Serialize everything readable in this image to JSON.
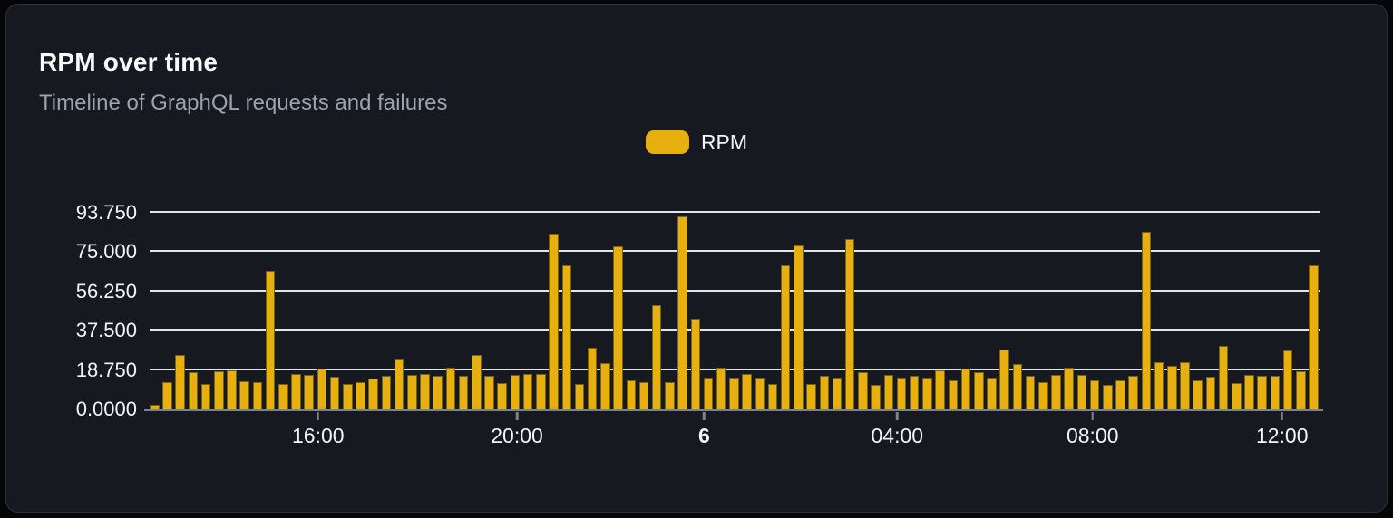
{
  "card": {
    "title": "RPM over time",
    "subtitle": "Timeline of GraphQL requests and failures"
  },
  "legend": {
    "items": [
      {
        "label": "RPM",
        "color": "#e8b00e"
      }
    ]
  },
  "colors": {
    "page_bg": "#060608",
    "card_bg": "#171920",
    "card_border": "#2e3138",
    "title_text": "#f9fafb",
    "subtitle_text": "#9aa3ae",
    "tick_text": "#f2f4f6",
    "grid_line": "#e2e6ea",
    "axis_line": "#7b838e",
    "bar_fill": "#e8b00e",
    "bar_stroke": "#76601a"
  },
  "chart_data": {
    "type": "bar",
    "title": "RPM over time",
    "subtitle": "Timeline of GraphQL requests and failures",
    "xlabel": "",
    "ylabel": "",
    "grid": "horizontal",
    "legend_position": "top-center",
    "ylim": [
      0,
      98.7
    ],
    "y_ticks": [
      {
        "label": "93.750",
        "value": 93.75
      },
      {
        "label": "75.000",
        "value": 75
      },
      {
        "label": "56.250",
        "value": 56.25
      },
      {
        "label": "37.500",
        "value": 37.5
      },
      {
        "label": "18.750",
        "value": 18.75
      },
      {
        "label": "0.0000",
        "value": 0
      }
    ],
    "x_ticks": [
      {
        "label": "16:00",
        "pos": 0.144,
        "bold": false
      },
      {
        "label": "20:00",
        "pos": 0.314,
        "bold": false
      },
      {
        "label": "6",
        "pos": 0.474,
        "bold": true
      },
      {
        "label": "04:00",
        "pos": 0.639,
        "bold": false
      },
      {
        "label": "08:00",
        "pos": 0.806,
        "bold": false
      },
      {
        "label": "12:00",
        "pos": 0.968,
        "bold": false
      }
    ],
    "series": [
      {
        "name": "RPM",
        "values": [
          2,
          13,
          26,
          17.5,
          12,
          18,
          18.5,
          13.5,
          13,
          66,
          12,
          17,
          16.5,
          19.5,
          15.5,
          12,
          13,
          14.5,
          16,
          24,
          16.5,
          17,
          16,
          20,
          16,
          26,
          16,
          12.5,
          16.5,
          17,
          17,
          83.5,
          68.5,
          12,
          29.5,
          22,
          77.5,
          14,
          13,
          49.5,
          13,
          92,
          43,
          15,
          20,
          15,
          17,
          15,
          12,
          68.5,
          78,
          12,
          16,
          15,
          81,
          17.5,
          11.5,
          16.5,
          15,
          16,
          15,
          18.5,
          14,
          19.5,
          17.5,
          15,
          28.5,
          21.5,
          16,
          13,
          16.5,
          20,
          16.5,
          14,
          11.5,
          14,
          16,
          84.5,
          22.5,
          20.5,
          22.5,
          14,
          15.5,
          30,
          12.5,
          16.5,
          16,
          16,
          28,
          18,
          68.5
        ]
      }
    ]
  }
}
